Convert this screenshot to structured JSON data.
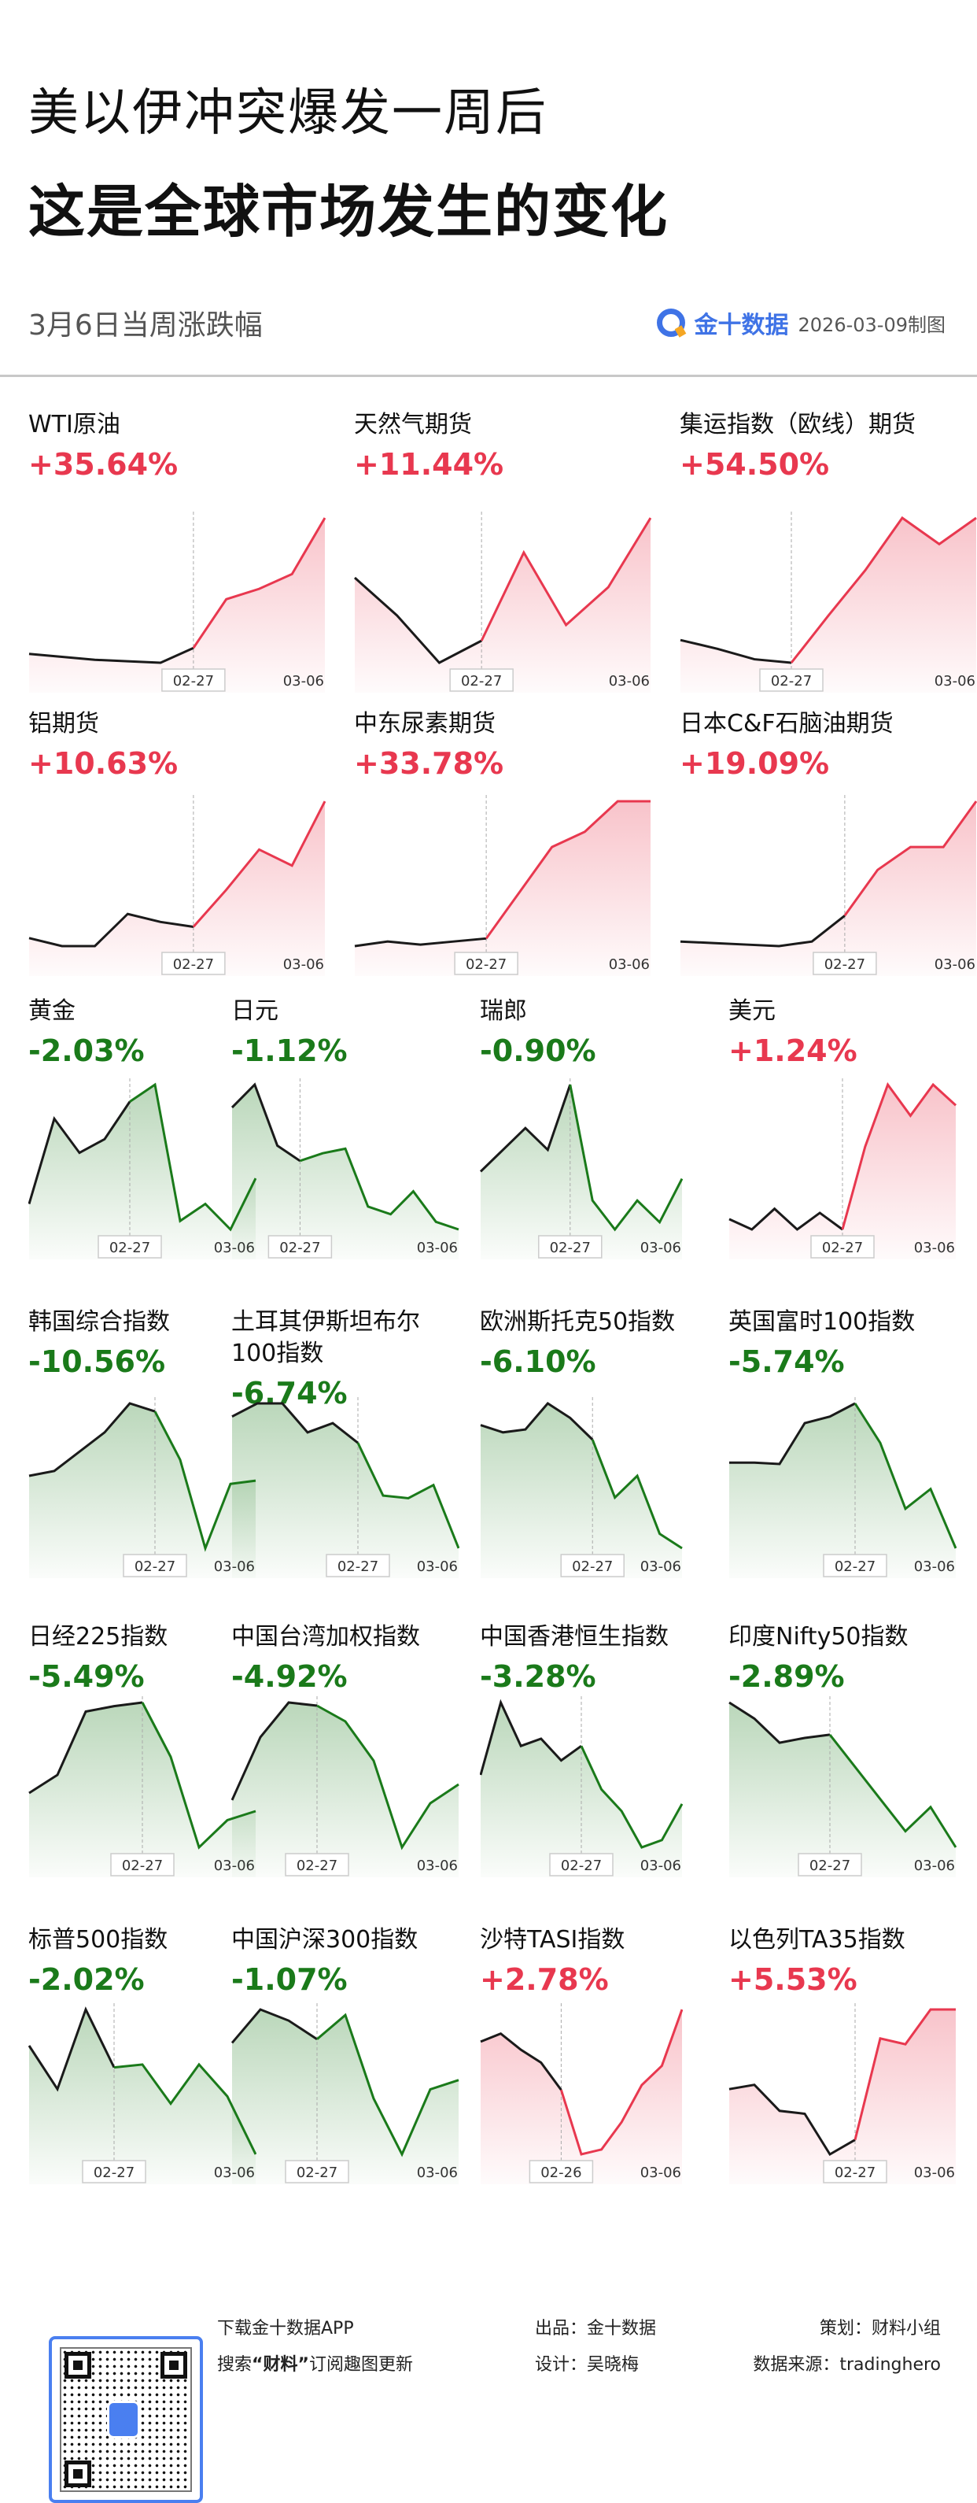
{
  "header": {
    "title_line1": "美以伊冲突爆发一周后",
    "title_line2": "这是全球市场发生的变化",
    "subtitle": "3月6日当周涨跌幅",
    "brand": "金十数据",
    "made_date": "2026-03-09制图"
  },
  "colors": {
    "up": "#e8384f",
    "down": "#1a7a1a",
    "pre": "#1a1a1a"
  },
  "chart_data": [
    {
      "type": "line",
      "name": "WTI原油",
      "change": "+35.64%",
      "dir": "up",
      "split_label": "02-27",
      "end_label": "03-06",
      "split": 5,
      "values": [
        8,
        6,
        4,
        3,
        2,
        12,
        45,
        52,
        62,
        100
      ]
    },
    {
      "type": "line",
      "name": "天然气期货",
      "change": "+11.44%",
      "dir": "up",
      "split_label": "02-27",
      "end_label": "03-06",
      "split": 3,
      "values": [
        62,
        38,
        8,
        22,
        78,
        32,
        56,
        100
      ]
    },
    {
      "type": "line",
      "name": "集运指数（欧线）期货",
      "change": "+54.50%",
      "dir": "up",
      "split_label": "02-27",
      "end_label": "03-06",
      "split": 3,
      "values": [
        30,
        25,
        19,
        17,
        44,
        70,
        100,
        85,
        100
      ]
    },
    {
      "type": "line",
      "name": "铝期货",
      "change": "+10.63%",
      "dir": "up",
      "split_label": "02-27",
      "end_label": "03-06",
      "split": 5,
      "values": [
        15,
        10,
        10,
        30,
        25,
        22,
        45,
        70,
        60,
        100
      ]
    },
    {
      "type": "line",
      "name": "中东尿素期货",
      "change": "+33.78%",
      "dir": "up",
      "split_label": "02-27",
      "end_label": "03-06",
      "split": 4,
      "values": [
        5,
        8,
        6,
        8,
        10,
        40,
        70,
        80,
        100,
        100
      ]
    },
    {
      "type": "line",
      "name": "日本C&F石脑油期货",
      "change": "+19.09%",
      "dir": "up",
      "split_label": "02-27",
      "end_label": "03-06",
      "split": 5,
      "values": [
        8,
        7,
        6,
        5,
        8,
        25,
        55,
        70,
        70,
        100
      ]
    },
    {
      "type": "line",
      "name": "黄金",
      "change": "-2.03%",
      "dir": "down",
      "split_label": "02-27",
      "end_label": "03-06",
      "split": 4,
      "values": [
        30,
        80,
        60,
        68,
        90,
        100,
        20,
        30,
        15,
        45
      ]
    },
    {
      "type": "line",
      "name": "日元",
      "change": "-1.12%",
      "dir": "down",
      "split_label": "02-27",
      "end_label": "03-06",
      "split": 3,
      "values": [
        85,
        100,
        60,
        50,
        55,
        58,
        20,
        15,
        30,
        10,
        5
      ]
    },
    {
      "type": "line",
      "name": "瑞郎",
      "change": "-0.90%",
      "dir": "down",
      "split_label": "02-27",
      "end_label": "03-06",
      "split": 4,
      "values": [
        40,
        55,
        70,
        55,
        100,
        20,
        0,
        20,
        5,
        35
      ]
    },
    {
      "type": "line",
      "name": "美元",
      "change": "+1.24%",
      "dir": "up",
      "split_label": "02-27",
      "end_label": "03-06",
      "split": 5,
      "values": [
        35,
        30,
        40,
        30,
        38,
        30,
        70,
        100,
        85,
        100,
        90
      ]
    },
    {
      "type": "line",
      "name": "韩国综合指数",
      "change": "-10.56%",
      "dir": "down",
      "split_label": "02-27",
      "end_label": "03-06",
      "split": 5,
      "values": [
        45,
        48,
        60,
        72,
        90,
        85,
        55,
        0,
        40,
        42
      ]
    },
    {
      "type": "line",
      "name": "土耳其伊斯坦布尔100指数",
      "change": "-6.74%",
      "dir": "down",
      "split_label": "02-27",
      "end_label": "03-06",
      "split": 5,
      "values": [
        100,
        110,
        110,
        88,
        95,
        80,
        40,
        38,
        48,
        0
      ]
    },
    {
      "type": "line",
      "name": "欧洲斯托克50指数",
      "change": "-6.10%",
      "dir": "down",
      "split_label": "02-27",
      "end_label": "03-06",
      "split": 5,
      "values": [
        95,
        90,
        92,
        110,
        100,
        85,
        45,
        60,
        20,
        10
      ]
    },
    {
      "type": "line",
      "name": "英国富时100指数",
      "change": "-5.74%",
      "dir": "down",
      "split_label": "02-27",
      "end_label": "03-06",
      "split": 5,
      "values": [
        65,
        65,
        64,
        95,
        100,
        110,
        80,
        30,
        45,
        0
      ]
    },
    {
      "type": "line",
      "name": "日经225指数",
      "change": "-5.49%",
      "dir": "down",
      "split_label": "02-27",
      "end_label": "03-06",
      "split": 4,
      "values": [
        40,
        50,
        85,
        88,
        90,
        60,
        10,
        25,
        30
      ]
    },
    {
      "type": "line",
      "name": "中国台湾加权指数",
      "change": "-4.92%",
      "dir": "down",
      "split_label": "02-27",
      "end_label": "03-06",
      "split": 3,
      "values": [
        30,
        70,
        92,
        90,
        80,
        55,
        0,
        28,
        40
      ]
    },
    {
      "type": "line",
      "name": "中国香港恒生指数",
      "change": "-3.28%",
      "dir": "down",
      "split_label": "02-27",
      "end_label": "03-06",
      "split": 5,
      "values": [
        50,
        100,
        70,
        75,
        60,
        70,
        40,
        25,
        0,
        5,
        30
      ]
    },
    {
      "type": "line",
      "name": "印度Nifty50指数",
      "change": "-2.89%",
      "dir": "down",
      "split_label": "02-27",
      "end_label": "03-06",
      "split": 4,
      "values": [
        100,
        90,
        75,
        78,
        80,
        60,
        40,
        20,
        35,
        10
      ]
    },
    {
      "type": "line",
      "name": "标普500指数",
      "change": "-2.02%",
      "dir": "down",
      "split_label": "02-27",
      "end_label": "03-06",
      "split": 3,
      "values": [
        75,
        45,
        100,
        60,
        62,
        35,
        62,
        40,
        0
      ]
    },
    {
      "type": "line",
      "name": "中国沪深300指数",
      "change": "-1.07%",
      "dir": "down",
      "split_label": "02-27",
      "end_label": "03-06",
      "split": 3,
      "values": [
        60,
        78,
        72,
        62,
        75,
        30,
        0,
        35,
        40
      ]
    },
    {
      "type": "line",
      "name": "沙特TASI指数",
      "change": "+2.78%",
      "dir": "up",
      "split_label": "02-26",
      "end_label": "03-06",
      "split": 4,
      "values": [
        75,
        80,
        70,
        62,
        45,
        5,
        8,
        25,
        48,
        60,
        95
      ]
    },
    {
      "type": "line",
      "name": "以色列TA35指数",
      "change": "+5.53%",
      "dir": "up",
      "split_label": "02-27",
      "end_label": "03-06",
      "split": 5,
      "values": [
        45,
        48,
        30,
        28,
        0,
        10,
        80,
        76,
        100,
        100
      ]
    }
  ],
  "footer": {
    "download": "下载金十数据APP",
    "search_prefix": "搜索",
    "search_keyword": "“财料”",
    "search_suffix": "订阅趣图更新",
    "producer": "出品：金十数据",
    "designer": "设计：吴晓梅",
    "planner": "策划：财料小组",
    "source": "数据来源：tradinghero"
  },
  "watermark": "金十数据"
}
